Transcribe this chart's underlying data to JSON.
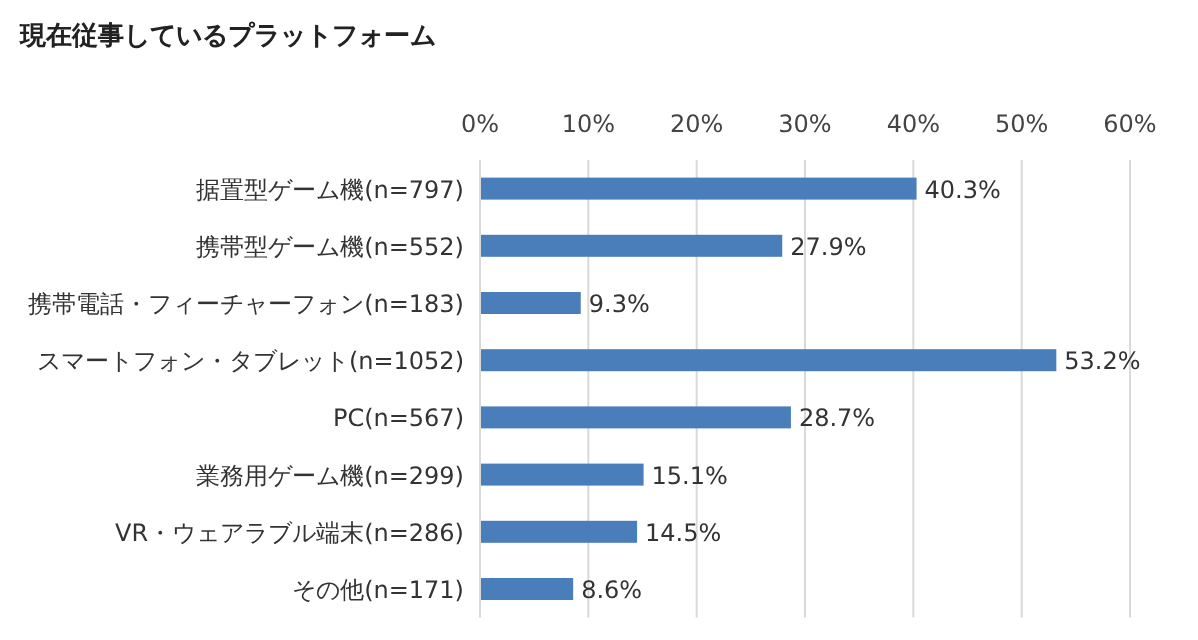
{
  "chart_data": {
    "type": "bar",
    "orientation": "horizontal",
    "title": "現在従事しているプラットフォーム",
    "categories": [
      "据置型ゲーム機(n=797)",
      "携帯型ゲーム機(n=552)",
      "携帯電話・フィーチャーフォン(n=183)",
      "スマートフォン・タブレット(n=1052)",
      "PC(n=567)",
      "業務用ゲーム機(n=299)",
      "VR・ウェアラブル端末(n=286)",
      "その他(n=171)"
    ],
    "values": [
      40.3,
      27.9,
      9.3,
      53.2,
      28.7,
      15.1,
      14.5,
      8.6
    ],
    "value_labels": [
      "40.3%",
      "27.9%",
      "9.3%",
      "53.2%",
      "28.7%",
      "15.1%",
      "14.5%",
      "8.6%"
    ],
    "color": "#4a7ebb",
    "xlim": [
      0,
      60
    ],
    "xticks": [
      {
        "value": 0,
        "label": "0%"
      },
      {
        "value": 10,
        "label": "10%"
      },
      {
        "value": 20,
        "label": "20%"
      },
      {
        "value": 30,
        "label": "30%"
      },
      {
        "value": 40,
        "label": "40%"
      },
      {
        "value": 50,
        "label": "50%"
      },
      {
        "value": 60,
        "label": "60%"
      }
    ],
    "grid": "x"
  }
}
